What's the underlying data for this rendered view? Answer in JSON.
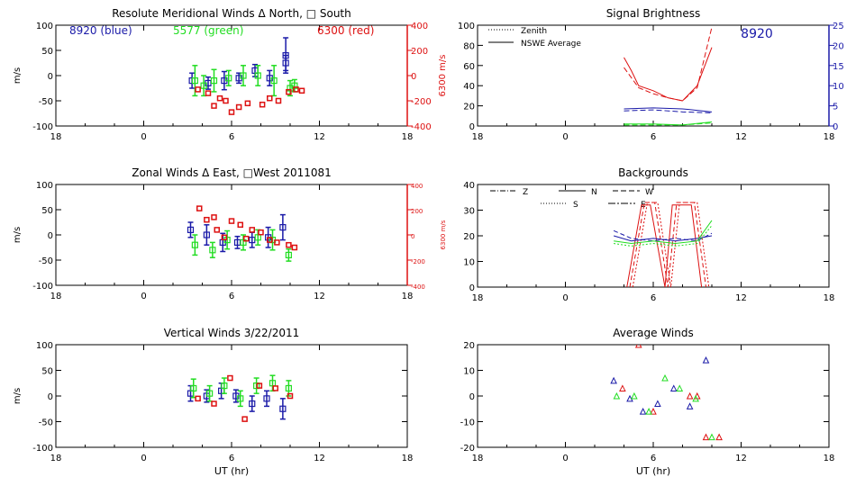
{
  "colors": {
    "blue": "#1a1aa8",
    "green": "#22dd22",
    "red": "#dd1111",
    "axis": "#000000"
  },
  "chart_data": [
    {
      "id": "meridional",
      "type": "scatter",
      "title": "Resolute Meridional Winds Δ North, □ South",
      "legend": [
        {
          "text": "8920 (blue)",
          "color": "blue"
        },
        {
          "text": "5577 (green)",
          "color": "green"
        },
        {
          "text": "6300 (red)",
          "color": "red"
        }
      ],
      "ylabel": "m/s",
      "y2label": "6300 m/s",
      "xlim": [
        -6,
        18
      ],
      "ylim": [
        -100,
        100
      ],
      "y2lim": [
        -400,
        400
      ],
      "xticks": [
        {
          "v": -6,
          "t": "18"
        },
        {
          "v": 0,
          "t": "0"
        },
        {
          "v": 6,
          "t": "6"
        },
        {
          "v": 12,
          "t": "12"
        },
        {
          "v": 18,
          "t": "18"
        }
      ],
      "yticks": [
        100,
        50,
        0,
        -50,
        -100
      ],
      "y2ticks": [
        {
          "v": 400,
          "t": "400"
        },
        {
          "v": 200,
          "t": "200"
        },
        {
          "v": 0,
          "t": "0"
        },
        {
          "v": -200,
          "t": "-200"
        },
        {
          "v": -400,
          "t": "-400"
        }
      ],
      "errorbars": [
        {
          "c": "blue",
          "x": 3.3,
          "y": -10,
          "e": 15
        },
        {
          "c": "blue",
          "x": 4.4,
          "y": -15,
          "e": 12
        },
        {
          "c": "blue",
          "x": 5.5,
          "y": -10,
          "e": 18
        },
        {
          "c": "blue",
          "x": 6.5,
          "y": -5,
          "e": 10
        },
        {
          "c": "blue",
          "x": 7.6,
          "y": 10,
          "e": 12
        },
        {
          "c": "blue",
          "x": 8.6,
          "y": -5,
          "e": 15
        },
        {
          "c": "blue",
          "x": 9.7,
          "y": 40,
          "e": 35
        },
        {
          "c": "blue",
          "x": 9.7,
          "y": 25,
          "e": 15
        },
        {
          "c": "green",
          "x": 3.5,
          "y": -10,
          "e": 30
        },
        {
          "c": "green",
          "x": 4.1,
          "y": -20,
          "e": 20
        },
        {
          "c": "green",
          "x": 4.8,
          "y": -10,
          "e": 22
        },
        {
          "c": "green",
          "x": 5.8,
          "y": -5,
          "e": 15
        },
        {
          "c": "green",
          "x": 6.8,
          "y": 0,
          "e": 20
        },
        {
          "c": "green",
          "x": 7.8,
          "y": 0,
          "e": 20
        },
        {
          "c": "green",
          "x": 8.9,
          "y": -10,
          "e": 30
        },
        {
          "c": "green",
          "x": 10.0,
          "y": -25,
          "e": 15
        },
        {
          "c": "green",
          "x": 10.3,
          "y": -20,
          "e": 12
        }
      ],
      "red_points": [
        {
          "x": 3.7,
          "y": -110
        },
        {
          "x": 4.4,
          "y": -140
        },
        {
          "x": 4.8,
          "y": -240
        },
        {
          "x": 5.2,
          "y": -180
        },
        {
          "x": 5.6,
          "y": -200
        },
        {
          "x": 6.0,
          "y": -290
        },
        {
          "x": 6.5,
          "y": -250
        },
        {
          "x": 7.1,
          "y": -220
        },
        {
          "x": 8.1,
          "y": -230
        },
        {
          "x": 8.6,
          "y": -180
        },
        {
          "x": 9.2,
          "y": -200
        },
        {
          "x": 9.9,
          "y": -130
        },
        {
          "x": 10.4,
          "y": -110
        },
        {
          "x": 10.8,
          "y": -120
        }
      ]
    },
    {
      "id": "zonal",
      "type": "scatter",
      "title": "Zonal Winds Δ East, □West 2011081",
      "ylabel": "m/s",
      "y2label": "6300 m/s",
      "xlim": [
        -6,
        18
      ],
      "ylim": [
        -100,
        100
      ],
      "y2lim": [
        -400,
        400
      ],
      "xticks": [
        {
          "v": -6,
          "t": "18"
        },
        {
          "v": 0,
          "t": "0"
        },
        {
          "v": 6,
          "t": "6"
        },
        {
          "v": 12,
          "t": "12"
        },
        {
          "v": 18,
          "t": "18"
        }
      ],
      "yticks": [
        100,
        50,
        0,
        -50,
        -100
      ],
      "y2ticks": [
        {
          "v": 400,
          "t": "400"
        },
        {
          "v": 200,
          "t": "200"
        },
        {
          "v": 0,
          "t": "0"
        },
        {
          "v": -200,
          "t": "-200"
        },
        {
          "v": -400,
          "t": "-400"
        }
      ],
      "errorbars": [
        {
          "c": "blue",
          "x": 3.2,
          "y": 10,
          "e": 15
        },
        {
          "c": "blue",
          "x": 4.3,
          "y": 0,
          "e": 20
        },
        {
          "c": "blue",
          "x": 5.4,
          "y": -15,
          "e": 18
        },
        {
          "c": "blue",
          "x": 6.4,
          "y": -15,
          "e": 12
        },
        {
          "c": "blue",
          "x": 7.4,
          "y": -10,
          "e": 15
        },
        {
          "c": "blue",
          "x": 8.5,
          "y": -5,
          "e": 20
        },
        {
          "c": "blue",
          "x": 9.5,
          "y": 15,
          "e": 25
        },
        {
          "c": "green",
          "x": 3.5,
          "y": -20,
          "e": 20
        },
        {
          "c": "green",
          "x": 4.7,
          "y": -30,
          "e": 15
        },
        {
          "c": "green",
          "x": 5.7,
          "y": -10,
          "e": 18
        },
        {
          "c": "green",
          "x": 6.8,
          "y": -15,
          "e": 15
        },
        {
          "c": "green",
          "x": 7.8,
          "y": -5,
          "e": 15
        },
        {
          "c": "green",
          "x": 8.8,
          "y": -10,
          "e": 20
        },
        {
          "c": "green",
          "x": 9.9,
          "y": -40,
          "e": 12
        }
      ],
      "red_points": [
        {
          "x": 3.8,
          "y": 210
        },
        {
          "x": 4.3,
          "y": 120
        },
        {
          "x": 4.8,
          "y": 140
        },
        {
          "x": 5.0,
          "y": 40
        },
        {
          "x": 5.5,
          "y": -20
        },
        {
          "x": 6.0,
          "y": 110
        },
        {
          "x": 6.6,
          "y": 80
        },
        {
          "x": 7.0,
          "y": -30
        },
        {
          "x": 7.4,
          "y": 40
        },
        {
          "x": 8.0,
          "y": 20
        },
        {
          "x": 8.6,
          "y": -40
        },
        {
          "x": 9.1,
          "y": -60
        },
        {
          "x": 9.9,
          "y": -80
        },
        {
          "x": 10.3,
          "y": -100
        }
      ]
    },
    {
      "id": "vertical",
      "type": "scatter",
      "title": "Vertical Winds 3/22/2011",
      "ylabel": "m/s",
      "xlabel": "UT (hr)",
      "xlim": [
        -6,
        18
      ],
      "ylim": [
        -100,
        100
      ],
      "xticks": [
        {
          "v": -6,
          "t": "18"
        },
        {
          "v": 0,
          "t": "0"
        },
        {
          "v": 6,
          "t": "6"
        },
        {
          "v": 12,
          "t": "12"
        },
        {
          "v": 18,
          "t": "18"
        }
      ],
      "yticks": [
        100,
        50,
        0,
        -50,
        -100
      ],
      "errorbars": [
        {
          "c": "blue",
          "x": 3.2,
          "y": 5,
          "e": 15
        },
        {
          "c": "blue",
          "x": 4.3,
          "y": 0,
          "e": 12
        },
        {
          "c": "blue",
          "x": 5.3,
          "y": 10,
          "e": 15
        },
        {
          "c": "blue",
          "x": 6.3,
          "y": 0,
          "e": 12
        },
        {
          "c": "blue",
          "x": 7.4,
          "y": -15,
          "e": 15
        },
        {
          "c": "blue",
          "x": 8.4,
          "y": -5,
          "e": 15
        },
        {
          "c": "blue",
          "x": 9.5,
          "y": -25,
          "e": 20
        },
        {
          "c": "green",
          "x": 3.4,
          "y": 15,
          "e": 18
        },
        {
          "c": "green",
          "x": 4.5,
          "y": 5,
          "e": 15
        },
        {
          "c": "green",
          "x": 5.5,
          "y": 20,
          "e": 15
        },
        {
          "c": "green",
          "x": 6.6,
          "y": -5,
          "e": 15
        },
        {
          "c": "green",
          "x": 7.7,
          "y": 20,
          "e": 15
        },
        {
          "c": "green",
          "x": 8.8,
          "y": 25,
          "e": 15
        },
        {
          "c": "green",
          "x": 9.9,
          "y": 15,
          "e": 15
        }
      ],
      "red_points": [
        {
          "x": 3.7,
          "y": -5
        },
        {
          "x": 4.8,
          "y": -15
        },
        {
          "x": 5.9,
          "y": 35
        },
        {
          "x": 6.9,
          "y": -45
        },
        {
          "x": 7.9,
          "y": 20
        },
        {
          "x": 9.0,
          "y": 15
        },
        {
          "x": 10.0,
          "y": 0
        }
      ]
    },
    {
      "id": "brightness",
      "type": "line",
      "title": "Signal Brightness",
      "annotation": "8920",
      "legend": [
        {
          "text": "Zenith",
          "style": "dotted"
        },
        {
          "text": "NSWE Average",
          "style": "solid"
        }
      ],
      "xlim": [
        -6,
        18
      ],
      "ylim": [
        0,
        100
      ],
      "y2lim": [
        0,
        25
      ],
      "xticks": [
        {
          "v": -6,
          "t": "18"
        },
        {
          "v": 0,
          "t": "0"
        },
        {
          "v": 6,
          "t": "6"
        },
        {
          "v": 12,
          "t": "12"
        },
        {
          "v": 18,
          "t": "18"
        }
      ],
      "yticks": [
        100,
        80,
        60,
        40,
        20,
        0
      ],
      "y2ticks": [
        {
          "v": 25,
          "t": "25"
        },
        {
          "v": 20,
          "t": "20"
        },
        {
          "v": 15,
          "t": "15"
        },
        {
          "v": 10,
          "t": "10"
        },
        {
          "v": 5,
          "t": "5"
        },
        {
          "v": 0,
          "t": "0"
        }
      ],
      "series": [
        {
          "c": "red",
          "dash": "",
          "x": [
            4,
            4.5,
            5,
            6,
            7,
            8,
            9,
            10
          ],
          "y": [
            68,
            55,
            40,
            35,
            28,
            25,
            40,
            78
          ]
        },
        {
          "c": "red",
          "dash": "6,3",
          "x": [
            4,
            5,
            6,
            7,
            8,
            9,
            10
          ],
          "y": [
            58,
            38,
            32,
            28,
            25,
            38,
            98
          ]
        },
        {
          "c": "blue",
          "dash": "",
          "x": [
            4,
            6,
            8,
            10
          ],
          "y": [
            17,
            18,
            17,
            14
          ]
        },
        {
          "c": "blue",
          "dash": "6,3",
          "x": [
            4,
            6,
            8,
            10
          ],
          "y": [
            15,
            16,
            14,
            13
          ]
        },
        {
          "c": "green",
          "dash": "",
          "x": [
            4,
            6,
            8,
            10
          ],
          "y": [
            2,
            2,
            1,
            4
          ]
        },
        {
          "c": "green",
          "dash": "6,3",
          "x": [
            4,
            6,
            8,
            10
          ],
          "y": [
            1,
            1,
            1,
            3
          ]
        }
      ]
    },
    {
      "id": "backgrounds",
      "type": "line",
      "title": "Backgrounds",
      "legend": [
        {
          "text": "Z",
          "style": "dashdot"
        },
        {
          "text": "N",
          "style": "solid"
        },
        {
          "text": "W",
          "style": "dashed"
        },
        {
          "text": "S",
          "style": "dotted"
        },
        {
          "text": "E",
          "style": "longdash"
        }
      ],
      "xlim": [
        -6,
        18
      ],
      "ylim": [
        0,
        40
      ],
      "xticks": [
        {
          "v": -6,
          "t": "18"
        },
        {
          "v": 0,
          "t": "0"
        },
        {
          "v": 6,
          "t": "6"
        },
        {
          "v": 12,
          "t": "12"
        },
        {
          "v": 18,
          "t": "18"
        }
      ],
      "yticks": [
        40,
        30,
        20,
        10,
        0
      ],
      "series": [
        {
          "c": "red",
          "dash": "",
          "x": [
            4.2,
            5.2,
            5.8,
            6.8,
            7.3,
            8.6,
            9.3
          ],
          "y": [
            0,
            32,
            32,
            0,
            32,
            32,
            0
          ]
        },
        {
          "c": "red",
          "dash": "5,3",
          "x": [
            4.4,
            5.4,
            6.1,
            7.0,
            7.6,
            8.8,
            9.6
          ],
          "y": [
            0,
            33,
            33,
            0,
            33,
            33,
            0
          ]
        },
        {
          "c": "red",
          "dash": "2,2",
          "x": [
            4.6,
            5.6,
            6.3,
            7.2,
            7.8,
            9.0,
            9.8
          ],
          "y": [
            0,
            33,
            33,
            0,
            33,
            33,
            0
          ]
        },
        {
          "c": "blue",
          "dash": "",
          "x": [
            3.3,
            4.5,
            6,
            7.5,
            9,
            10
          ],
          "y": [
            20,
            18,
            19,
            18,
            19,
            20
          ]
        },
        {
          "c": "blue",
          "dash": "5,3",
          "x": [
            3.3,
            4.5,
            6,
            7.5,
            9,
            10
          ],
          "y": [
            22,
            19,
            18,
            19,
            18,
            21
          ]
        },
        {
          "c": "green",
          "dash": "",
          "x": [
            3.3,
            4.5,
            6,
            7.5,
            9,
            10
          ],
          "y": [
            18,
            17,
            18,
            17,
            18,
            26
          ]
        },
        {
          "c": "green",
          "dash": "2,2",
          "x": [
            3.3,
            4.5,
            6,
            7.5,
            9,
            10
          ],
          "y": [
            17,
            16,
            17,
            16,
            17,
            24
          ]
        }
      ]
    },
    {
      "id": "average",
      "type": "scatter",
      "title": "Average Winds",
      "xlabel": "UT (hr)",
      "xlim": [
        -6,
        18
      ],
      "ylim": [
        -20,
        20
      ],
      "xticks": [
        {
          "v": -6,
          "t": "18"
        },
        {
          "v": 0,
          "t": "0"
        },
        {
          "v": 6,
          "t": "6"
        },
        {
          "v": 12,
          "t": "12"
        },
        {
          "v": 18,
          "t": "18"
        }
      ],
      "yticks": [
        20,
        10,
        0,
        -10,
        -20
      ],
      "points": [
        {
          "c": "red",
          "x": 5.0,
          "y": 20
        },
        {
          "c": "red",
          "x": 3.9,
          "y": 3
        },
        {
          "c": "red",
          "x": 6.0,
          "y": -6
        },
        {
          "c": "red",
          "x": 8.5,
          "y": 0
        },
        {
          "c": "red",
          "x": 9.0,
          "y": 0
        },
        {
          "c": "red",
          "x": 9.6,
          "y": -16
        },
        {
          "c": "red",
          "x": 10.5,
          "y": -16
        },
        {
          "c": "blue",
          "x": 3.3,
          "y": 6
        },
        {
          "c": "blue",
          "x": 4.4,
          "y": -1
        },
        {
          "c": "blue",
          "x": 5.3,
          "y": -6
        },
        {
          "c": "blue",
          "x": 6.3,
          "y": -3
        },
        {
          "c": "blue",
          "x": 7.4,
          "y": 3
        },
        {
          "c": "blue",
          "x": 8.5,
          "y": -4
        },
        {
          "c": "blue",
          "x": 9.6,
          "y": 14
        },
        {
          "c": "green",
          "x": 3.5,
          "y": 0
        },
        {
          "c": "green",
          "x": 4.7,
          "y": 0
        },
        {
          "c": "green",
          "x": 5.7,
          "y": -6
        },
        {
          "c": "green",
          "x": 6.8,
          "y": 7
        },
        {
          "c": "green",
          "x": 7.8,
          "y": 3
        },
        {
          "c": "green",
          "x": 8.9,
          "y": -1
        },
        {
          "c": "green",
          "x": 10.0,
          "y": -16
        }
      ]
    }
  ]
}
